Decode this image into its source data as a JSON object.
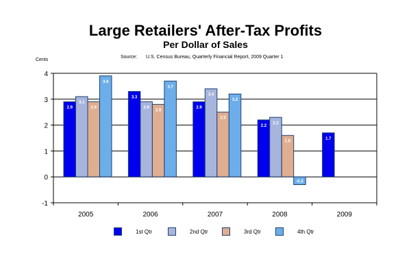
{
  "chart_data": {
    "type": "bar",
    "title": "Large Retailers' After-Tax Profits",
    "subtitle": "Per Dollar of Sales",
    "source_label": "Source:",
    "source_text": "U.S. Census Bureau, Quarterly Financial Report, 2009 Quarter 1",
    "ylabel": "Cents",
    "xlabel": "",
    "ylim": [
      -1,
      4
    ],
    "yticks": [
      "4",
      "3",
      "2",
      "1",
      "0",
      "-1"
    ],
    "grid": true,
    "legend_position": "bottom",
    "categories": [
      "2005",
      "2006",
      "2007",
      "2008",
      "2009"
    ],
    "series": [
      {
        "name": "1st Qtr",
        "color": "#0000ee",
        "values": [
          2.9,
          3.3,
          2.9,
          2.2,
          1.7
        ]
      },
      {
        "name": "2nd Qtr",
        "color": "#a7b5dd",
        "values": [
          3.1,
          2.9,
          3.4,
          2.3,
          null
        ]
      },
      {
        "name": "3rd Qtr",
        "color": "#dfae90",
        "values": [
          2.9,
          2.8,
          2.5,
          1.6,
          null
        ]
      },
      {
        "name": "4th Qtr",
        "color": "#6caeea",
        "values": [
          3.9,
          3.7,
          3.2,
          -0.3,
          null
        ]
      }
    ]
  }
}
